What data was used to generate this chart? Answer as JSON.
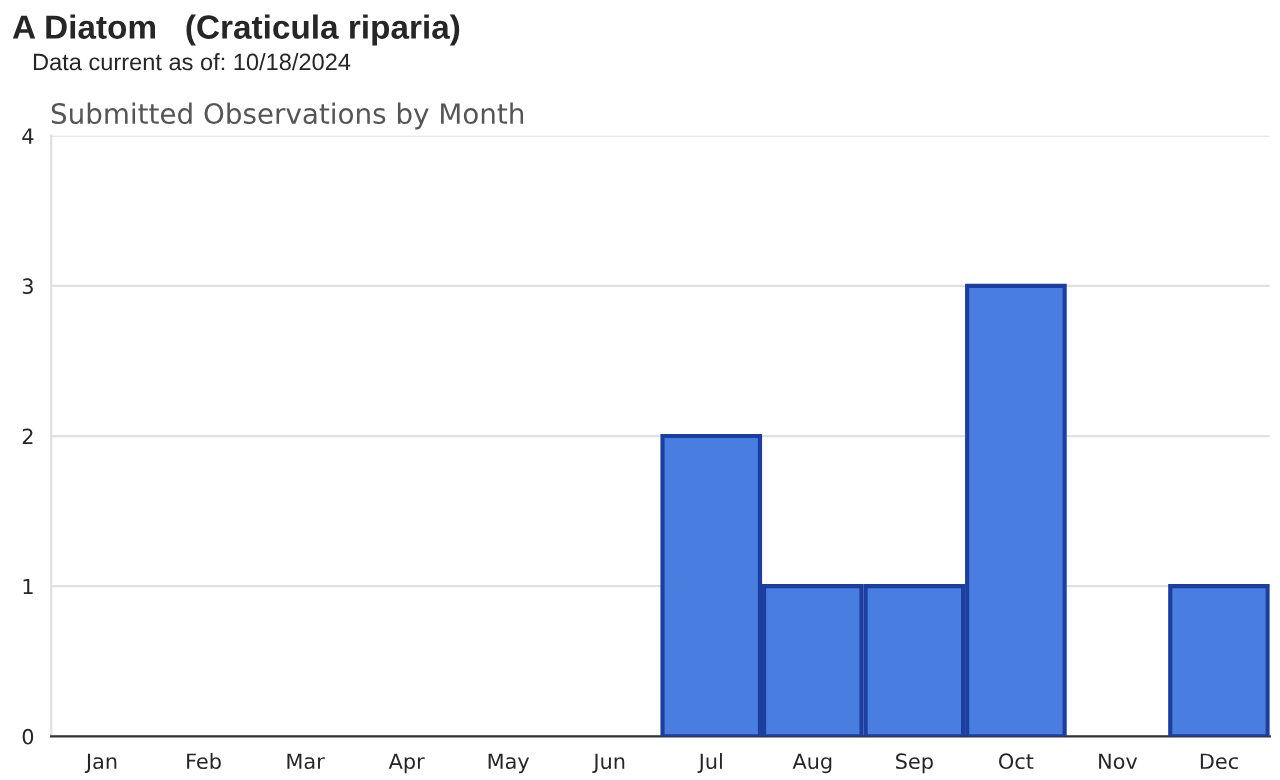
{
  "chart_data": {
    "type": "bar",
    "title": "A Diatom   (Craticula riparia)",
    "subtitle": "Data current as of: 10/18/2024",
    "annotations": [
      "Submitted Observations by Month"
    ],
    "categories": [
      "Jan",
      "Feb",
      "Mar",
      "Apr",
      "May",
      "Jun",
      "Jul",
      "Aug",
      "Sep",
      "Oct",
      "Nov",
      "Dec"
    ],
    "values": [
      0,
      0,
      0,
      0,
      0,
      0,
      2,
      1,
      1,
      3,
      0,
      1
    ],
    "color": "#4a7de0",
    "ylim": [
      0,
      4
    ],
    "yticks": [
      0,
      1,
      2,
      3,
      4
    ],
    "grid": "y",
    "legend": false
  }
}
